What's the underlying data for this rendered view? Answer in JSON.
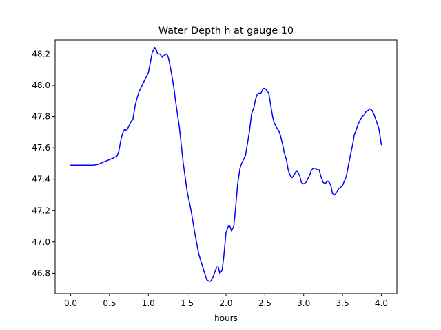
{
  "chart_data": {
    "type": "line",
    "title": "Water Depth h at gauge 10",
    "xlabel": "hours",
    "ylabel": "",
    "xlim": [
      -0.2,
      4.2
    ],
    "ylim": [
      46.67,
      48.29
    ],
    "xticks": [
      0.0,
      0.5,
      1.0,
      1.5,
      2.0,
      2.5,
      3.0,
      3.5,
      4.0
    ],
    "xtick_labels": [
      "0.0",
      "0.5",
      "1.0",
      "1.5",
      "2.0",
      "2.5",
      "3.0",
      "3.5",
      "4.0"
    ],
    "yticks": [
      46.8,
      47.0,
      47.2,
      47.4,
      47.6,
      47.8,
      48.0,
      48.2
    ],
    "ytick_labels": [
      "46.8",
      "47.0",
      "47.2",
      "47.4",
      "47.6",
      "47.8",
      "48.0",
      "48.2"
    ],
    "grid": false,
    "series": [
      {
        "color": "#0000ff",
        "x": [
          0.0,
          0.1,
          0.2,
          0.3,
          0.35,
          0.4,
          0.45,
          0.5,
          0.55,
          0.6,
          0.62,
          0.65,
          0.68,
          0.7,
          0.72,
          0.75,
          0.78,
          0.8,
          0.83,
          0.85,
          0.88,
          0.9,
          0.95,
          1.0,
          1.02,
          1.05,
          1.08,
          1.1,
          1.12,
          1.15,
          1.18,
          1.2,
          1.23,
          1.25,
          1.27,
          1.3,
          1.33,
          1.35,
          1.4,
          1.45,
          1.5,
          1.55,
          1.6,
          1.65,
          1.7,
          1.75,
          1.78,
          1.8,
          1.83,
          1.85,
          1.88,
          1.9,
          1.92,
          1.95,
          1.97,
          2.0,
          2.03,
          2.05,
          2.07,
          2.1,
          2.12,
          2.15,
          2.18,
          2.2,
          2.25,
          2.3,
          2.33,
          2.36,
          2.38,
          2.4,
          2.42,
          2.45,
          2.48,
          2.5,
          2.52,
          2.55,
          2.57,
          2.6,
          2.62,
          2.65,
          2.68,
          2.7,
          2.73,
          2.75,
          2.78,
          2.8,
          2.83,
          2.85,
          2.88,
          2.9,
          2.92,
          2.95,
          2.97,
          3.0,
          3.03,
          3.05,
          3.08,
          3.1,
          3.13,
          3.15,
          3.17,
          3.2,
          3.22,
          3.25,
          3.28,
          3.3,
          3.33,
          3.35,
          3.37,
          3.4,
          3.43,
          3.45,
          3.48,
          3.5,
          3.55,
          3.6,
          3.63,
          3.65,
          3.68,
          3.7,
          3.73,
          3.75,
          3.78,
          3.8,
          3.83,
          3.85,
          3.88,
          3.9,
          3.93,
          3.95,
          3.97,
          4.0
        ],
        "y": [
          47.49,
          47.49,
          47.49,
          47.49,
          47.495,
          47.505,
          47.515,
          47.525,
          47.535,
          47.55,
          47.58,
          47.66,
          47.71,
          47.72,
          47.71,
          47.74,
          47.77,
          47.78,
          47.87,
          47.91,
          47.96,
          47.98,
          48.03,
          48.08,
          48.13,
          48.21,
          48.24,
          48.23,
          48.2,
          48.2,
          48.18,
          48.19,
          48.2,
          48.19,
          48.15,
          48.07,
          47.98,
          47.9,
          47.73,
          47.5,
          47.32,
          47.2,
          47.05,
          46.92,
          46.84,
          46.76,
          46.75,
          46.75,
          46.77,
          46.8,
          46.84,
          46.84,
          46.8,
          46.82,
          46.9,
          47.06,
          47.1,
          47.1,
          47.07,
          47.1,
          47.2,
          47.37,
          47.47,
          47.5,
          47.55,
          47.7,
          47.82,
          47.86,
          47.91,
          47.94,
          47.95,
          47.95,
          47.98,
          47.98,
          47.97,
          47.95,
          47.89,
          47.8,
          47.76,
          47.73,
          47.71,
          47.68,
          47.62,
          47.57,
          47.52,
          47.46,
          47.42,
          47.41,
          47.43,
          47.45,
          47.45,
          47.42,
          47.38,
          47.37,
          47.38,
          47.4,
          47.43,
          47.46,
          47.47,
          47.47,
          47.46,
          47.46,
          47.42,
          47.38,
          47.37,
          47.39,
          47.38,
          47.36,
          47.31,
          47.3,
          47.32,
          47.34,
          47.35,
          47.36,
          47.42,
          47.55,
          47.62,
          47.68,
          47.72,
          47.75,
          47.78,
          47.8,
          47.81,
          47.83,
          47.84,
          47.85,
          47.84,
          47.82,
          47.78,
          47.75,
          47.72,
          47.62
        ]
      }
    ]
  }
}
